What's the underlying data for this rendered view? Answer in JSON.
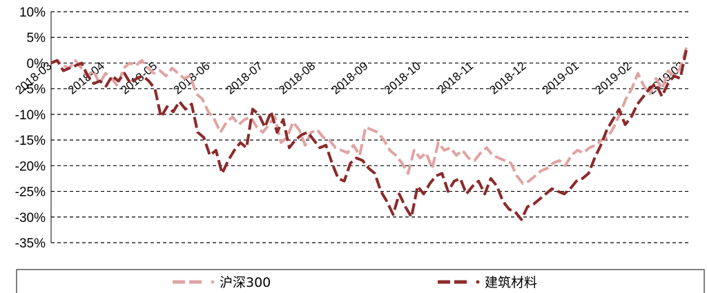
{
  "chart_data": {
    "type": "line",
    "title": "",
    "xlabel": "",
    "ylabel": "",
    "ylim": [
      -35,
      10
    ],
    "yticks": [
      10,
      5,
      0,
      -5,
      -10,
      -15,
      -20,
      -25,
      -30,
      -35
    ],
    "ytick_labels": [
      "10%",
      "5%",
      "0%",
      "-5%",
      "-10%",
      "-15%",
      "-20%",
      "-25%",
      "-30%",
      "-35%"
    ],
    "xtick_labels": [
      "2018-03",
      "2018-04",
      "2018-05",
      "2018-06",
      "2018-07",
      "2018-08",
      "2018-09",
      "2018-10",
      "2018-11",
      "2018-12",
      "2019-01",
      "2019-02",
      "2019-03"
    ],
    "grid": "horizontal dashed",
    "legend_position": "bottom",
    "series": [
      {
        "name": "沪深300",
        "color": "#e0a3a3",
        "values": [
          0.0,
          0.5,
          -0.5,
          -1.0,
          0.5,
          -1.0,
          -2.5,
          -1.5,
          -4.0,
          -2.0,
          -3.0,
          -4.5,
          -1.0,
          0.0,
          -0.5,
          0.5,
          -1.0,
          -2.0,
          -1.5,
          -2.5,
          -1.0,
          -2.0,
          -3.0,
          -2.5,
          -6.0,
          -7.0,
          -9.5,
          -11.0,
          -13.5,
          -11.5,
          -10.5,
          -12.0,
          -11.0,
          -10.5,
          -12.5,
          -13.5,
          -12.0,
          -10.5,
          -15.5,
          -14.5,
          -11.5,
          -13.0,
          -16.0,
          -13.5,
          -13.0,
          -14.5,
          -15.0,
          -16.5,
          -17.0,
          -17.5,
          -16.0,
          -18.0,
          -12.5,
          -13.0,
          -13.5,
          -15.0,
          -17.0,
          -18.0,
          -19.5,
          -21.5,
          -17.0,
          -18.5,
          -17.5,
          -20.5,
          -15.5,
          -17.0,
          -16.5,
          -18.0,
          -17.0,
          -18.5,
          -19.0,
          -17.5,
          -16.5,
          -18.0,
          -18.5,
          -19.0,
          -19.5,
          -22.0,
          -23.5,
          -23.0,
          -22.0,
          -21.0,
          -20.5,
          -19.5,
          -19.0,
          -20.0,
          -18.0,
          -17.0,
          -17.5,
          -16.5,
          -16.0,
          -15.0,
          -14.5,
          -12.5,
          -10.0,
          -7.0,
          -5.0,
          -2.0,
          -4.5,
          -6.0,
          -3.0,
          -5.0,
          -1.5,
          -2.5,
          -1.0,
          3.0
        ]
      },
      {
        "name": "建筑材料",
        "color": "#8b2a2a",
        "values": [
          0.0,
          0.5,
          -1.5,
          -1.0,
          -0.5,
          0.0,
          -2.5,
          -4.0,
          -3.5,
          -4.5,
          -2.5,
          -3.5,
          -2.0,
          -4.0,
          -3.0,
          -2.5,
          -3.5,
          -5.0,
          -10.5,
          -8.5,
          -9.5,
          -7.5,
          -9.0,
          -8.0,
          -13.5,
          -14.5,
          -18.0,
          -17.0,
          -21.5,
          -19.0,
          -17.0,
          -15.5,
          -16.5,
          -9.0,
          -10.0,
          -12.5,
          -9.5,
          -13.5,
          -11.0,
          -16.5,
          -15.0,
          -14.0,
          -13.5,
          -15.0,
          -16.5,
          -16.0,
          -19.5,
          -22.5,
          -23.0,
          -19.5,
          -18.5,
          -19.0,
          -20.5,
          -21.5,
          -25.0,
          -27.0,
          -29.5,
          -25.5,
          -28.0,
          -30.0,
          -24.0,
          -25.5,
          -23.5,
          -22.0,
          -21.5,
          -25.0,
          -23.0,
          -22.5,
          -25.5,
          -24.0,
          -23.0,
          -25.5,
          -22.5,
          -24.0,
          -27.0,
          -28.5,
          -29.0,
          -30.5,
          -28.0,
          -27.5,
          -26.5,
          -25.5,
          -24.5,
          -25.0,
          -25.5,
          -24.5,
          -23.0,
          -22.5,
          -21.5,
          -18.5,
          -16.0,
          -13.0,
          -11.0,
          -9.0,
          -12.0,
          -10.5,
          -8.0,
          -6.5,
          -5.0,
          -4.0,
          -6.5,
          -4.0,
          -2.5,
          -3.0,
          2.5
        ]
      }
    ]
  }
}
